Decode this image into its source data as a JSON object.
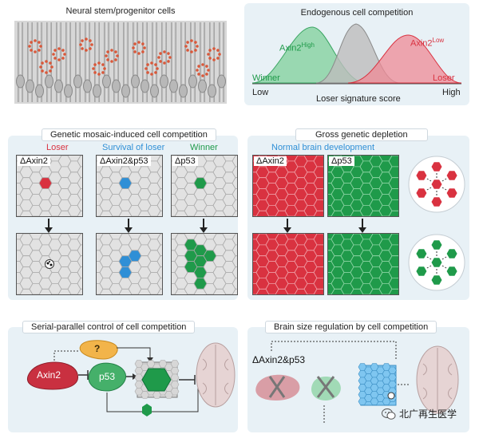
{
  "panels": {
    "p1": {
      "title": "Neural stem/progenitor cells"
    },
    "p2": {
      "title": "Endogenous cell competition",
      "winner": "Winner",
      "loser": "Loser",
      "axis_low": "Low",
      "axis_high": "High",
      "axis_title": "Loser signature score",
      "high_label": "Axin2",
      "high_sup": "High",
      "low_label": "Axin2",
      "low_sup": "Low"
    },
    "p3": {
      "title": "Genetic mosaic-induced cell competition",
      "col_labels": [
        "Loser",
        "Survival of loser",
        "Winner"
      ],
      "tile_tags": [
        "ΔAxin2",
        "ΔAxin2&p53",
        "Δp53"
      ]
    },
    "p4": {
      "title": "Gross genetic depletion",
      "subtitle": "Normal brain development",
      "tile_tags": [
        "ΔAxin2",
        "Δp53"
      ]
    },
    "p5": {
      "title": "Serial-parallel control of cell competition",
      "q": "?",
      "axin2": "Axin2",
      "p53": "p53"
    },
    "p6": {
      "title": "Brain size regulation by cell competition",
      "label": "ΔAxin2&p53"
    }
  },
  "watermark": "北广再生医学",
  "colors": {
    "red": "#d93240",
    "blue": "#2f8fd6",
    "green": "#1f9a4a",
    "panel_bg": "#e8f1f6",
    "grid": "#c8c8c8"
  }
}
